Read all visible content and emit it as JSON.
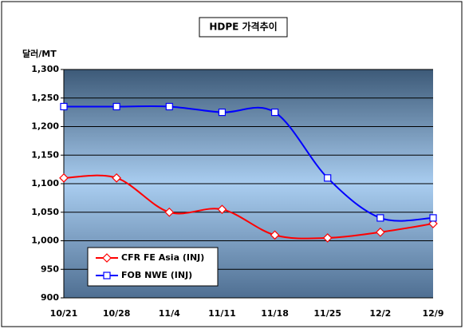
{
  "chart_data": {
    "type": "line",
    "title": "HDPE 가격추이",
    "y_label": "달러/MT",
    "categories": [
      "10/21",
      "10/28",
      "11/4",
      "11/11",
      "11/18",
      "11/25",
      "12/2",
      "12/9"
    ],
    "series": [
      {
        "name": "CFR FE Asia (INJ)",
        "color": "#ff0000",
        "marker": "diamond",
        "values": [
          1110,
          1110,
          1050,
          1055,
          1010,
          1005,
          1015,
          1030
        ]
      },
      {
        "name": "FOB NWE (INJ)",
        "color": "#0000ff",
        "marker": "square",
        "values": [
          1235,
          1235,
          1235,
          1225,
          1225,
          1110,
          1040,
          1040
        ]
      }
    ],
    "ylim": [
      900,
      1300
    ],
    "yticks": [
      900,
      950,
      {
        "value": 1000,
        "label": "1,000"
      },
      {
        "value": 1050,
        "label": "1,050"
      },
      {
        "value": 1100,
        "label": "1,100"
      },
      {
        "value": 1150,
        "label": "1,150"
      },
      {
        "value": 1200,
        "label": "1,200"
      },
      {
        "value": 1250,
        "label": "1,250"
      },
      {
        "value": 1300,
        "label": "1,300"
      }
    ],
    "grid": true,
    "smooth": true,
    "legend_position": "lower left"
  }
}
